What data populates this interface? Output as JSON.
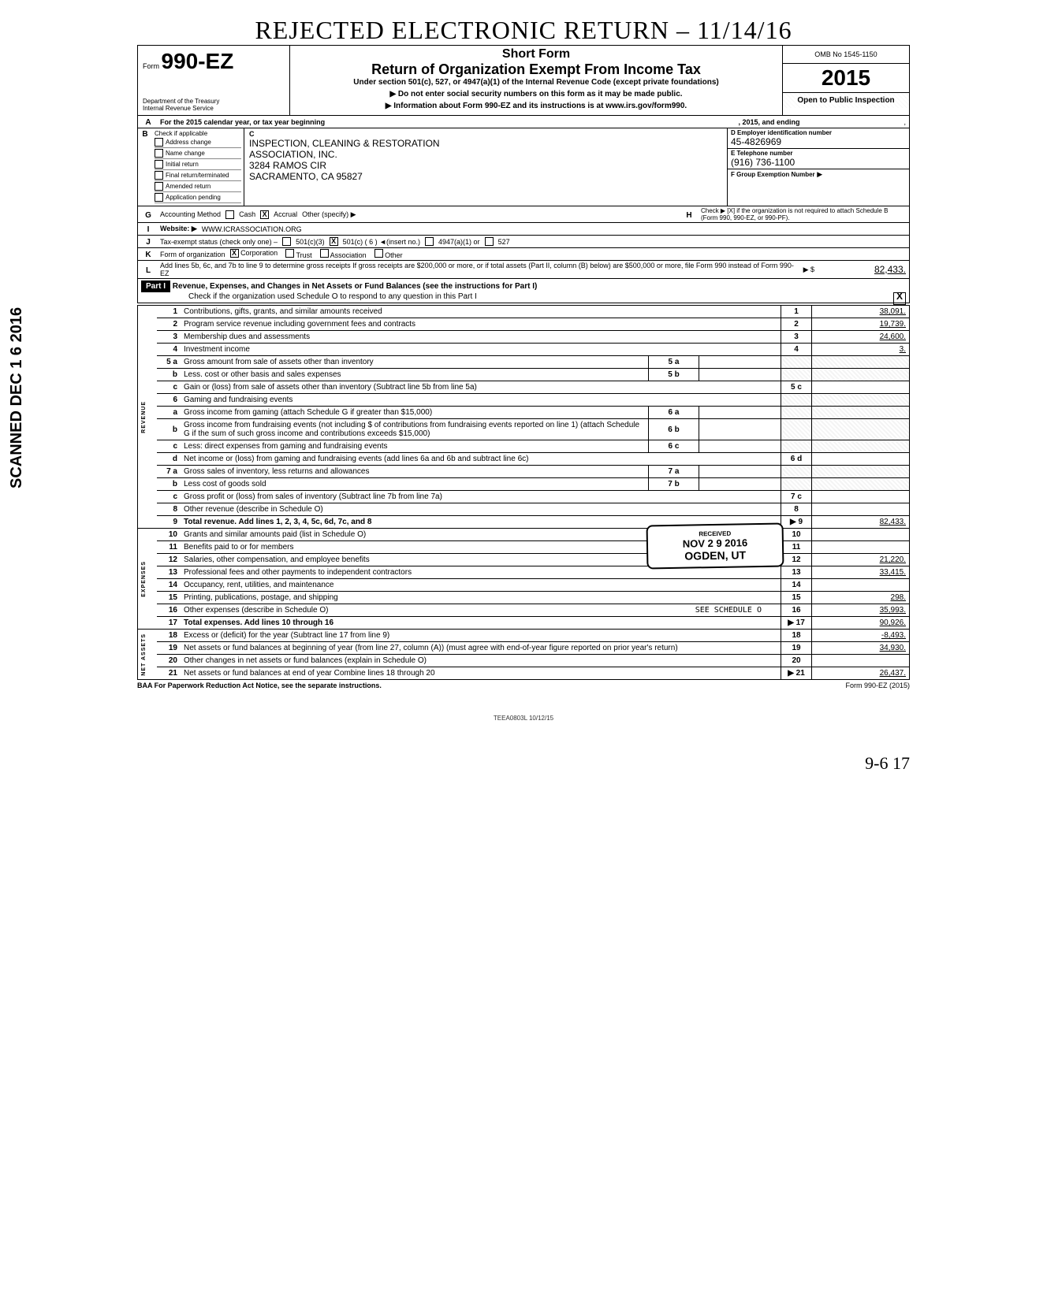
{
  "side_stamp": "SCANNED DEC 1 6 2016",
  "handwritten_top": "REJECTED ELECTRONIC RETURN – 11/14/16",
  "form": {
    "prefix": "Form",
    "number": "990-EZ",
    "dept1": "Department of the Treasury",
    "dept2": "Internal Revenue Service"
  },
  "title": {
    "short": "Short Form",
    "main": "Return of Organization Exempt From Income Tax",
    "sub1": "Under section 501(c), 527, or 4947(a)(1) of the Internal Revenue Code (except private foundations)",
    "sub2": "▶ Do not enter social security numbers on this form as it may be made public.",
    "sub3": "▶ Information about Form 990-EZ and its instructions is at www.irs.gov/form990."
  },
  "right_head": {
    "omb": "OMB No  1545-1150",
    "year": "2015",
    "open": "Open to Public Inspection"
  },
  "lineA": {
    "text1": "For the 2015 calendar year, or tax year beginning",
    "text2": ", 2015, and ending",
    "text3": ","
  },
  "B": {
    "header": "Check if applicable",
    "items": [
      "Address change",
      "Name change",
      "Initial return",
      "Final return/terminated",
      "Amended return",
      "Application pending"
    ]
  },
  "C": {
    "letter": "C",
    "name1": "INSPECTION, CLEANING & RESTORATION",
    "name2": "ASSOCIATION, INC.",
    "addr1": "3284 RAMOS CIR",
    "addr2": "SACRAMENTO, CA 95827"
  },
  "D": {
    "label": "D  Employer identification number",
    "value": "45-4826969",
    "E_label": "E  Telephone number",
    "E_value": "(916) 736-1100",
    "F_label": "F  Group Exemption Number",
    "F_value": "▶"
  },
  "G": {
    "label": "Accounting Method",
    "cash": "Cash",
    "accrual": "Accrual",
    "other": "Other (specify) ▶"
  },
  "H": {
    "text": "Check ▶ [X] if the organization is not required to attach Schedule B (Form 990, 990-EZ, or 990-PF)."
  },
  "I": {
    "label": "Website: ▶",
    "value": "WWW.ICRASSOCIATION.ORG"
  },
  "J": {
    "label": "Tax-exempt status (check only one) –",
    "opt1": "501(c)(3)",
    "opt2": "501(c) ( 6 ) ◄(insert no.)",
    "opt3": "4947(a)(1) or",
    "opt4": "527"
  },
  "K": {
    "label": "Form of organization",
    "opts": [
      "Corporation",
      "Trust",
      "Association",
      "Other"
    ]
  },
  "L": {
    "text": "Add lines 5b, 6c, and 7b to line 9 to determine gross receipts  If gross receipts are $200,000 or more, or if total assets (Part II, column (B) below) are $500,000 or more, file Form 990 instead of Form 990-EZ",
    "arrow": "▶ $",
    "value": "82,433."
  },
  "part1": {
    "label": "Part I",
    "title": "Revenue, Expenses, and Changes in Net Assets or Fund Balances (see the instructions for Part I)",
    "check": "Check if the organization used Schedule O to respond to any question in this Part I",
    "checked": "X"
  },
  "vert": {
    "rev": "REVENUE",
    "exp": "EXPENSES",
    "net": "NET ASSETS"
  },
  "lines": [
    {
      "n": "1",
      "desc": "Contributions, gifts, grants, and similar amounts received",
      "ln": "1",
      "amt": "38,091."
    },
    {
      "n": "2",
      "desc": "Program service revenue including government fees and contracts",
      "ln": "2",
      "amt": "19,739."
    },
    {
      "n": "3",
      "desc": "Membership dues and assessments",
      "ln": "3",
      "amt": "24,600."
    },
    {
      "n": "4",
      "desc": "Investment income",
      "ln": "4",
      "amt": "3."
    },
    {
      "n": "5 a",
      "desc": "Gross amount from sale of assets other than inventory",
      "mid": "5 a",
      "midval": "",
      "shadeR": true
    },
    {
      "n": "b",
      "desc": "Less. cost or other basis and sales expenses",
      "mid": "5 b",
      "midval": "",
      "shadeR": true
    },
    {
      "n": "c",
      "desc": "Gain or (loss) from sale of assets other than inventory (Subtract line 5b from line 5a)",
      "ln": "5 c",
      "amt": ""
    },
    {
      "n": "6",
      "desc": "Gaming and fundraising events",
      "shadeR": true,
      "noborder": true
    },
    {
      "n": "a",
      "desc": "Gross income from gaming (attach Schedule G if greater than $15,000)",
      "mid": "6 a",
      "midval": "",
      "shadeR": true
    },
    {
      "n": "b",
      "desc": "Gross income from fundraising events (not including $                    of contributions from fundraising events reported on line 1) (attach Schedule G if the sum of such gross income and contributions exceeds $15,000)",
      "mid": "6 b",
      "midval": "",
      "shadeR": true
    },
    {
      "n": "c",
      "desc": "Less: direct expenses from gaming and fundraising events",
      "mid": "6 c",
      "midval": "",
      "shadeR": true
    },
    {
      "n": "d",
      "desc": "Net income or (loss) from gaming and fundraising events (add lines 6a and 6b and subtract line 6c)",
      "ln": "6 d",
      "amt": ""
    },
    {
      "n": "7 a",
      "desc": "Gross sales of inventory, less returns and allowances",
      "mid": "7 a",
      "midval": "",
      "shadeR": true
    },
    {
      "n": "b",
      "desc": "Less cost of goods sold",
      "mid": "7 b",
      "midval": "",
      "shadeR": true
    },
    {
      "n": "c",
      "desc": "Gross profit or (loss) from sales of inventory (Subtract line 7b from line 7a)",
      "ln": "7 c",
      "amt": ""
    },
    {
      "n": "8",
      "desc": "Other revenue (describe in Schedule O)",
      "ln": "8",
      "amt": ""
    },
    {
      "n": "9",
      "desc": "Total revenue. Add lines 1, 2, 3, 4, 5c, 6d, 7c, and 8",
      "bold": true,
      "arrow": "▶",
      "ln": "9",
      "amt": "82,433."
    },
    {
      "n": "10",
      "desc": "Grants and similar amounts paid (list in Schedule O)",
      "ln": "10",
      "amt": ""
    },
    {
      "n": "11",
      "desc": "Benefits paid to or for members",
      "ln": "11",
      "amt": ""
    },
    {
      "n": "12",
      "desc": "Salaries, other compensation, and employee benefits",
      "ln": "12",
      "amt": "21,220."
    },
    {
      "n": "13",
      "desc": "Professional fees and other payments to independent contractors",
      "ln": "13",
      "amt": "33,415."
    },
    {
      "n": "14",
      "desc": "Occupancy, rent, utilities, and maintenance",
      "ln": "14",
      "amt": ""
    },
    {
      "n": "15",
      "desc": "Printing, publications, postage, and shipping",
      "ln": "15",
      "amt": "298."
    },
    {
      "n": "16",
      "desc": "Other expenses (describe in Schedule O)",
      "extra": "SEE SCHEDULE O",
      "ln": "16",
      "amt": "35,993."
    },
    {
      "n": "17",
      "desc": "Total expenses. Add lines 10 through 16",
      "bold": true,
      "arrow": "▶",
      "ln": "17",
      "amt": "90,926."
    },
    {
      "n": "18",
      "desc": "Excess or (deficit) for the year (Subtract line 17 from line 9)",
      "ln": "18",
      "amt": "-8,493."
    },
    {
      "n": "19",
      "desc": "Net assets or fund balances at beginning of year (from line 27, column (A)) (must agree with end-of-year figure reported on prior year's return)",
      "ln": "19",
      "amt": "34,930."
    },
    {
      "n": "20",
      "desc": "Other changes in net assets or fund balances (explain in Schedule O)",
      "ln": "20",
      "amt": ""
    },
    {
      "n": "21",
      "desc": "Net assets or fund balances at end of year  Combine lines 18 through 20",
      "arrow": "▶",
      "ln": "21",
      "amt": "26,437."
    }
  ],
  "stamp": {
    "small": "RECEIVED",
    "date": "NOV 2 9 2016",
    "city": "OGDEN, UT"
  },
  "footer": {
    "left": "BAA  For Paperwork Reduction Act Notice, see the separate instructions.",
    "right": "Form 990-EZ (2015)"
  },
  "teea": "TEEA0803L   10/12/15",
  "pagefoot": "9-6    17"
}
